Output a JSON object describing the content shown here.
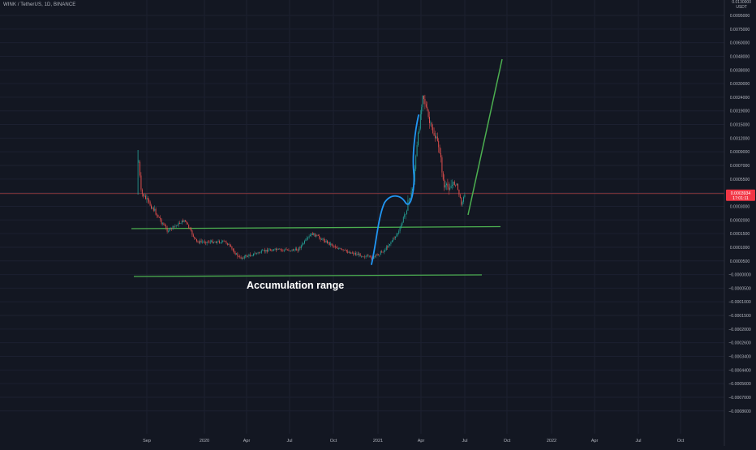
{
  "header": {
    "symbol": "WINK / TetherUS, 1D, BINANCE",
    "price_top_cut": "0.0130000",
    "currency": "USDT"
  },
  "colors": {
    "background": "#131722",
    "candle_up": "#26a69a",
    "candle_down": "#ef5350",
    "support_line": "#4caf50",
    "projection_line": "#4caf50",
    "path_drawing": "#2196f3",
    "price_line": "#ef5350",
    "price_label_bg": "#f23645"
  },
  "chart_data": {
    "type": "candlestick",
    "symbol": "WINK / TetherUS",
    "timeframe": "1D",
    "exchange": "BINANCE",
    "y_axis": {
      "scale": "custom (regression-trend style)",
      "tick_labels": [
        "0.0095000",
        "0.0075000",
        "0.0060000",
        "0.0048000",
        "0.0038000",
        "0.0030000",
        "0.0024000",
        "0.0019000",
        "0.0015000",
        "0.0012000",
        "0.0009000",
        "0.0007000",
        "0.0005500",
        "0.0004000",
        "0.0003000",
        "0.0002000",
        "0.0001500",
        "0.0001000",
        "0.0000500",
        "−0.0000000",
        "−0.0000500",
        "−0.0001000",
        "−0.0001500",
        "−0.0002000",
        "−0.0002600",
        "−0.0003400",
        "−0.0004400",
        "−0.0005600",
        "−0.0007000",
        "−0.0008600"
      ]
    },
    "x_axis": {
      "tick_labels": [
        "Sep",
        "2020",
        "Apr",
        "Jul",
        "Oct",
        "2021",
        "Apr",
        "Jul",
        "Oct",
        "2022",
        "Apr",
        "Jul",
        "Oct"
      ]
    },
    "current_price": {
      "value": "0.0003934",
      "countdown": "17:01:11"
    },
    "annotations": [
      {
        "type": "text",
        "text": "Accumulation range"
      },
      {
        "type": "horizontal_support",
        "description": "upper range line",
        "price_level": 0.00019
      },
      {
        "type": "horizontal_support",
        "description": "lower range line",
        "price_level": 4.3e-05
      },
      {
        "type": "path",
        "description": "blue drawn path of projected move"
      },
      {
        "type": "projection_line",
        "description": "green rising projection line"
      }
    ],
    "price_path_approx": [
      {
        "date": "2019-08-15",
        "price": 0.00075
      },
      {
        "date": "2019-08-20",
        "price": 0.0004
      },
      {
        "date": "2019-09-15",
        "price": 0.00028
      },
      {
        "date": "2019-10-15",
        "price": 0.00016
      },
      {
        "date": "2019-11-20",
        "price": 0.0002
      },
      {
        "date": "2019-12-15",
        "price": 0.00012
      },
      {
        "date": "2020-02-15",
        "price": 0.00012
      },
      {
        "date": "2020-03-15",
        "price": 6e-05
      },
      {
        "date": "2020-05-15",
        "price": 9e-05
      },
      {
        "date": "2020-07-15",
        "price": 9e-05
      },
      {
        "date": "2020-08-15",
        "price": 0.00015
      },
      {
        "date": "2020-10-15",
        "price": 9e-05
      },
      {
        "date": "2020-12-20",
        "price": 6e-05
      },
      {
        "date": "2021-01-15",
        "price": 9e-05
      },
      {
        "date": "2021-02-15",
        "price": 0.00016
      },
      {
        "date": "2021-03-15",
        "price": 0.00045
      },
      {
        "date": "2021-04-05",
        "price": 0.0026
      },
      {
        "date": "2021-04-20",
        "price": 0.0015
      },
      {
        "date": "2021-05-10",
        "price": 0.001
      },
      {
        "date": "2021-05-20",
        "price": 0.00045
      },
      {
        "date": "2021-06-15",
        "price": 0.0005
      },
      {
        "date": "2021-06-25",
        "price": 0.00032
      },
      {
        "date": "2021-07-03",
        "price": 0.00039
      }
    ]
  }
}
